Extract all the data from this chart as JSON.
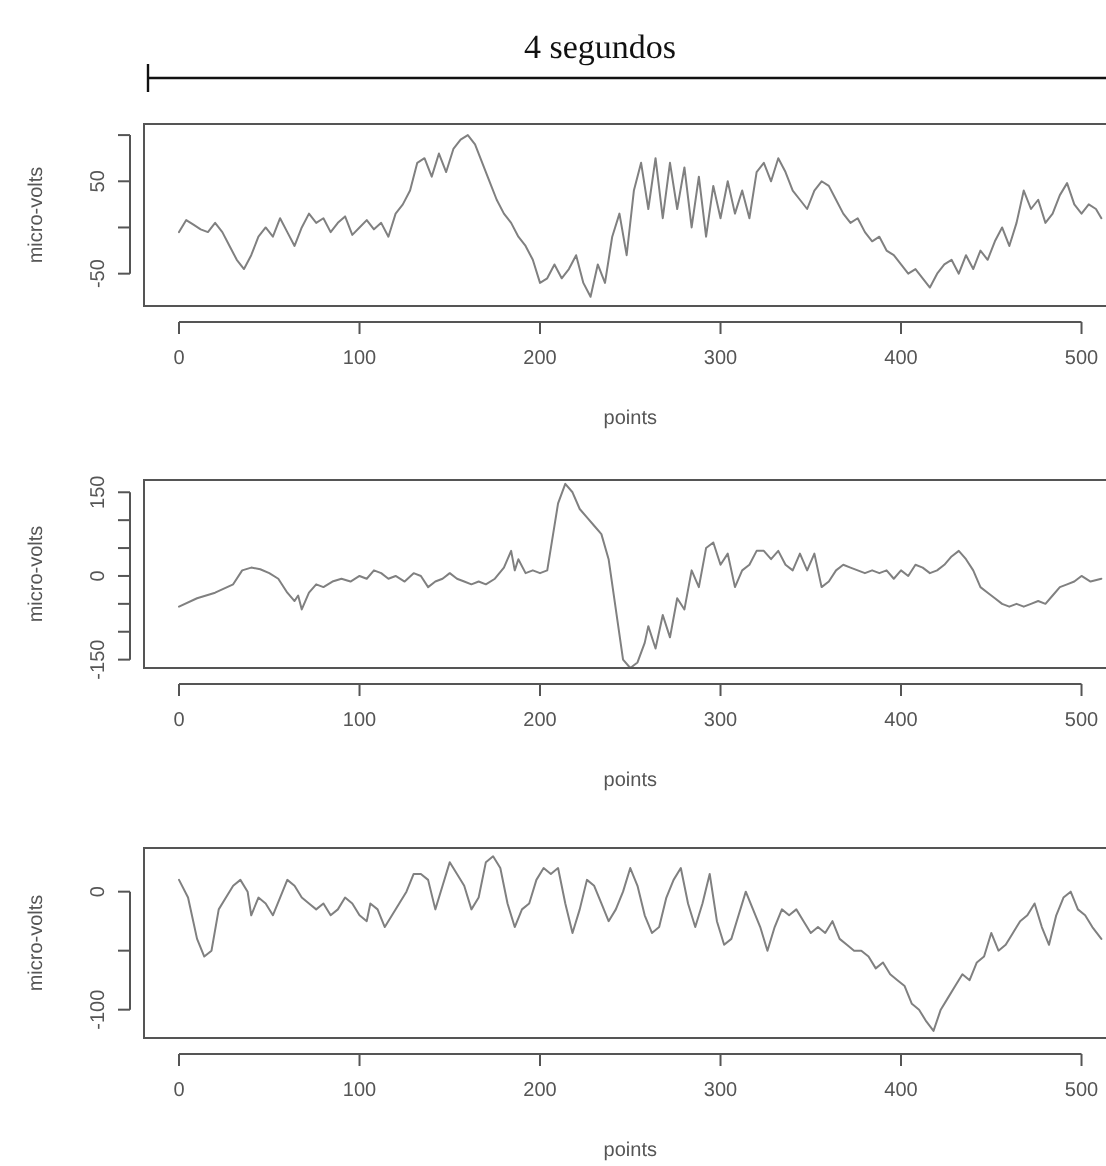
{
  "chart_data": [
    {
      "type": "line",
      "annotations": [
        "4 segundos"
      ],
      "xlabel": "points",
      "ylabel": "micro-volts",
      "xlim": [
        -19.4,
        532.4
      ],
      "ylim": [
        -85,
        112
      ],
      "xticks": [
        0,
        100,
        200,
        300,
        400,
        500
      ],
      "yticks": [
        {
          "value": 100,
          "label": null
        },
        50,
        {
          "value": 0,
          "label": null
        },
        -50
      ],
      "grid": false,
      "series": [
        {
          "color": "#808080",
          "x": [
            0,
            4,
            8,
            12,
            16,
            20,
            24,
            28,
            32,
            36,
            40,
            44,
            48,
            52,
            56,
            60,
            64,
            68,
            72,
            76,
            80,
            84,
            88,
            92,
            96,
            100,
            104,
            108,
            112,
            116,
            120,
            124,
            128,
            132,
            136,
            140,
            144,
            148,
            152,
            156,
            160,
            164,
            168,
            172,
            176,
            180,
            184,
            188,
            192,
            196,
            200,
            204,
            208,
            212,
            216,
            220,
            224,
            228,
            232,
            236,
            240,
            244,
            248,
            252,
            256,
            260,
            264,
            268,
            272,
            276,
            280,
            284,
            288,
            292,
            296,
            300,
            304,
            308,
            312,
            316,
            320,
            324,
            328,
            332,
            336,
            340,
            344,
            348,
            352,
            356,
            360,
            364,
            368,
            372,
            376,
            380,
            384,
            388,
            392,
            396,
            400,
            404,
            408,
            412,
            416,
            420,
            424,
            428,
            432,
            436,
            440,
            444,
            448,
            452,
            456,
            460,
            464,
            468,
            472,
            476,
            480,
            484,
            488,
            492,
            496,
            500,
            504,
            508,
            511
          ],
          "values": [
            -5,
            8,
            3,
            -2,
            -5,
            5,
            -5,
            -20,
            -35,
            -45,
            -30,
            -10,
            0,
            -10,
            10,
            -5,
            -20,
            0,
            15,
            5,
            10,
            -5,
            5,
            12,
            -8,
            0,
            8,
            -2,
            5,
            -10,
            15,
            25,
            40,
            70,
            75,
            55,
            80,
            60,
            85,
            95,
            100,
            90,
            70,
            50,
            30,
            15,
            5,
            -10,
            -20,
            -35,
            -60,
            -55,
            -40,
            -55,
            -45,
            -30,
            -60,
            -75,
            -40,
            -60,
            -10,
            15,
            -30,
            40,
            70,
            20,
            75,
            10,
            70,
            20,
            65,
            0,
            55,
            -10,
            45,
            10,
            50,
            15,
            40,
            10,
            60,
            70,
            50,
            75,
            60,
            40,
            30,
            20,
            40,
            50,
            45,
            30,
            15,
            5,
            10,
            -5,
            -15,
            -10,
            -25,
            -30,
            -40,
            -50,
            -45,
            -55,
            -65,
            -50,
            -40,
            -35,
            -50,
            -30,
            -45,
            -25,
            -35,
            -15,
            0,
            -20,
            5,
            40,
            20,
            30,
            5,
            15,
            35,
            48,
            25,
            15,
            25,
            20,
            10
          ]
        }
      ]
    },
    {
      "type": "line",
      "xlabel": "points",
      "ylabel": "micro-volts",
      "xlim": [
        -19.4,
        532.4
      ],
      "ylim": [
        -165,
        172
      ],
      "xticks": [
        0,
        100,
        200,
        300,
        400,
        500
      ],
      "yticks": [
        150,
        {
          "value": 100,
          "label": null
        },
        {
          "value": 50,
          "label": null
        },
        0,
        {
          "value": -50,
          "label": null
        },
        {
          "value": -100,
          "label": null
        },
        -150
      ],
      "grid": false,
      "series": [
        {
          "color": "#808080",
          "x": [
            0,
            10,
            20,
            30,
            35,
            40,
            45,
            50,
            55,
            60,
            64,
            66,
            68,
            72,
            76,
            80,
            85,
            90,
            95,
            100,
            104,
            108,
            112,
            116,
            120,
            125,
            130,
            134,
            138,
            142,
            146,
            150,
            154,
            158,
            162,
            166,
            170,
            175,
            180,
            184,
            186,
            188,
            192,
            196,
            200,
            204,
            206,
            210,
            214,
            218,
            222,
            226,
            230,
            234,
            238,
            242,
            246,
            250,
            254,
            258,
            260,
            264,
            268,
            272,
            276,
            280,
            284,
            288,
            292,
            296,
            300,
            304,
            308,
            312,
            316,
            320,
            324,
            328,
            332,
            336,
            340,
            344,
            348,
            352,
            356,
            360,
            364,
            368,
            372,
            376,
            380,
            384,
            388,
            392,
            396,
            400,
            404,
            408,
            412,
            416,
            420,
            424,
            428,
            432,
            436,
            440,
            444,
            448,
            452,
            456,
            460,
            464,
            468,
            472,
            476,
            480,
            484,
            488,
            492,
            496,
            500,
            505,
            511
          ],
          "values": [
            -55,
            -40,
            -30,
            -15,
            10,
            15,
            12,
            5,
            -5,
            -30,
            -45,
            -35,
            -60,
            -30,
            -15,
            -20,
            -10,
            -5,
            -10,
            0,
            -5,
            10,
            5,
            -5,
            0,
            -10,
            5,
            0,
            -20,
            -10,
            -5,
            5,
            -5,
            -10,
            -15,
            -10,
            -15,
            -5,
            15,
            45,
            10,
            30,
            5,
            10,
            5,
            10,
            50,
            130,
            165,
            150,
            120,
            105,
            90,
            75,
            30,
            -60,
            -150,
            -165,
            -155,
            -120,
            -90,
            -130,
            -70,
            -110,
            -40,
            -60,
            10,
            -20,
            50,
            60,
            20,
            40,
            -20,
            10,
            20,
            45,
            45,
            30,
            45,
            20,
            10,
            40,
            10,
            40,
            -20,
            -10,
            10,
            20,
            15,
            10,
            5,
            10,
            5,
            10,
            -5,
            10,
            0,
            20,
            15,
            5,
            10,
            20,
            35,
            45,
            30,
            10,
            -20,
            -30,
            -40,
            -50,
            -55,
            -50,
            -55,
            -50,
            -45,
            -50,
            -35,
            -20,
            -15,
            -10,
            0,
            -10,
            -5
          ]
        }
      ]
    },
    {
      "type": "line",
      "xlabel": "points",
      "ylabel": "micro-volts",
      "xlim": [
        -19.4,
        532.4
      ],
      "ylim": [
        -124,
        37
      ],
      "xticks": [
        0,
        100,
        200,
        300,
        400,
        500
      ],
      "yticks": [
        0,
        {
          "value": -50,
          "label": null
        },
        -100
      ],
      "grid": false,
      "series": [
        {
          "color": "#808080",
          "x": [
            0,
            5,
            10,
            14,
            18,
            22,
            26,
            30,
            34,
            38,
            40,
            44,
            48,
            52,
            56,
            60,
            64,
            68,
            72,
            76,
            80,
            84,
            88,
            92,
            96,
            100,
            104,
            106,
            110,
            114,
            118,
            122,
            126,
            130,
            134,
            138,
            142,
            146,
            150,
            154,
            158,
            162,
            166,
            170,
            174,
            178,
            182,
            186,
            190,
            194,
            198,
            202,
            206,
            210,
            214,
            218,
            222,
            226,
            230,
            234,
            238,
            242,
            246,
            250,
            254,
            258,
            262,
            266,
            270,
            274,
            278,
            282,
            286,
            290,
            294,
            298,
            302,
            306,
            310,
            314,
            318,
            322,
            326,
            330,
            334,
            338,
            342,
            346,
            350,
            354,
            358,
            362,
            366,
            370,
            374,
            378,
            382,
            386,
            390,
            394,
            398,
            402,
            406,
            410,
            414,
            418,
            422,
            426,
            430,
            434,
            438,
            442,
            446,
            450,
            454,
            458,
            462,
            466,
            470,
            474,
            478,
            482,
            486,
            490,
            494,
            498,
            502,
            506,
            511
          ],
          "values": [
            10,
            -5,
            -40,
            -55,
            -50,
            -15,
            -5,
            5,
            10,
            0,
            -20,
            -5,
            -10,
            -20,
            -5,
            10,
            5,
            -5,
            -10,
            -15,
            -10,
            -20,
            -15,
            -5,
            -10,
            -20,
            -25,
            -10,
            -15,
            -30,
            -20,
            -10,
            0,
            15,
            15,
            10,
            -15,
            5,
            25,
            15,
            5,
            -15,
            -5,
            25,
            30,
            20,
            -10,
            -30,
            -15,
            -10,
            10,
            20,
            15,
            20,
            -10,
            -35,
            -15,
            10,
            5,
            -10,
            -25,
            -15,
            0,
            20,
            5,
            -20,
            -35,
            -30,
            -5,
            10,
            20,
            -10,
            -30,
            -10,
            15,
            -25,
            -45,
            -40,
            -20,
            0,
            -15,
            -30,
            -50,
            -30,
            -15,
            -20,
            -15,
            -25,
            -35,
            -30,
            -35,
            -25,
            -40,
            -45,
            -50,
            -50,
            -55,
            -65,
            -60,
            -70,
            -75,
            -80,
            -95,
            -100,
            -110,
            -118,
            -100,
            -90,
            -80,
            -70,
            -75,
            -60,
            -55,
            -35,
            -50,
            -45,
            -35,
            -25,
            -20,
            -10,
            -30,
            -45,
            -20,
            -5,
            0,
            -15,
            -20,
            -30,
            -40
          ]
        }
      ]
    }
  ]
}
